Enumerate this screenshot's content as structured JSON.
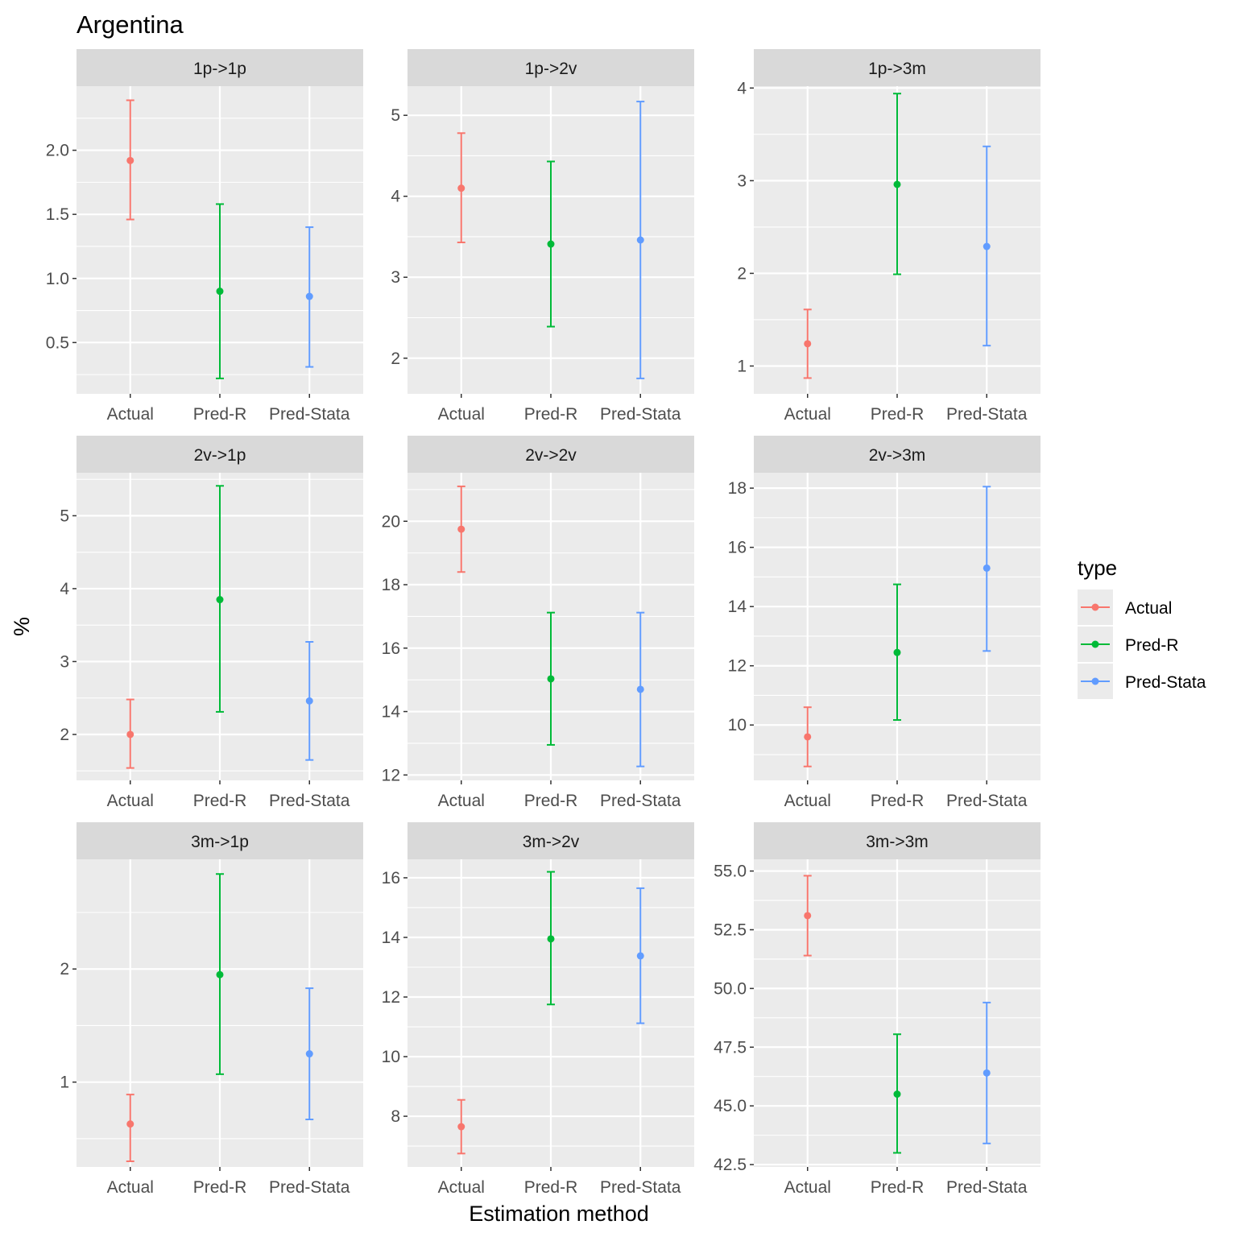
{
  "title": "Argentina",
  "xlabel": "Estimation method",
  "ylabel": "%",
  "legend": {
    "title": "type",
    "items": [
      "Actual",
      "Pred-R",
      "Pred-Stata"
    ],
    "placement": "right"
  },
  "colors": {
    "Actual": "#F8766D",
    "Pred-R": "#00BA38",
    "Pred-Stata": "#619CFF",
    "panel_bg": "#EBEBEB",
    "strip_bg": "#D9D9D9",
    "grid": "#FFFFFF"
  },
  "chart_data": [
    {
      "type": "errorbar",
      "panel": "1p->1p",
      "categories": [
        "Actual",
        "Pred-R",
        "Pred-Stata"
      ],
      "values": [
        1.92,
        0.9,
        0.86
      ],
      "lower": [
        1.46,
        0.22,
        0.31
      ],
      "upper": [
        2.39,
        1.58,
        1.4
      ],
      "ylim": [
        0.1,
        2.5
      ],
      "yticks": [
        0.5,
        1.0,
        1.5,
        2.0
      ],
      "ytick_labels": [
        "0.5",
        "1.0",
        "1.5",
        "2.0"
      ]
    },
    {
      "type": "errorbar",
      "panel": "1p->2v",
      "categories": [
        "Actual",
        "Pred-R",
        "Pred-Stata"
      ],
      "values": [
        4.1,
        3.41,
        3.46
      ],
      "lower": [
        3.43,
        2.39,
        1.75
      ],
      "upper": [
        4.78,
        4.43,
        5.17
      ],
      "ylim": [
        1.56,
        5.36
      ],
      "yticks": [
        2,
        3,
        4,
        5
      ],
      "ytick_labels": [
        "2",
        "3",
        "4",
        "5"
      ]
    },
    {
      "type": "errorbar",
      "panel": "1p->3m",
      "categories": [
        "Actual",
        "Pred-R",
        "Pred-Stata"
      ],
      "values": [
        1.24,
        2.96,
        2.29
      ],
      "lower": [
        0.87,
        1.99,
        1.22
      ],
      "upper": [
        1.61,
        3.94,
        3.37
      ],
      "ylim": [
        0.7,
        4.02
      ],
      "yticks": [
        1,
        2,
        3,
        4
      ],
      "ytick_labels": [
        "1",
        "2",
        "3",
        "4"
      ]
    },
    {
      "type": "errorbar",
      "panel": "2v->1p",
      "categories": [
        "Actual",
        "Pred-R",
        "Pred-Stata"
      ],
      "values": [
        2.0,
        3.85,
        2.46
      ],
      "lower": [
        1.54,
        2.31,
        1.65
      ],
      "upper": [
        2.48,
        5.41,
        3.27
      ],
      "ylim": [
        1.37,
        5.59
      ],
      "yticks": [
        2,
        3,
        4,
        5
      ],
      "ytick_labels": [
        "2",
        "3",
        "4",
        "5"
      ]
    },
    {
      "type": "errorbar",
      "panel": "2v->2v",
      "categories": [
        "Actual",
        "Pred-R",
        "Pred-Stata"
      ],
      "values": [
        19.75,
        15.03,
        14.7
      ],
      "lower": [
        18.4,
        12.95,
        12.27
      ],
      "upper": [
        21.1,
        17.12,
        17.12
      ],
      "ylim": [
        11.83,
        21.53
      ],
      "yticks": [
        12,
        14,
        16,
        18,
        20
      ],
      "ytick_labels": [
        "12",
        "14",
        "16",
        "18",
        "20"
      ]
    },
    {
      "type": "errorbar",
      "panel": "2v->3m",
      "categories": [
        "Actual",
        "Pred-R",
        "Pred-Stata"
      ],
      "values": [
        9.6,
        12.45,
        15.3
      ],
      "lower": [
        8.6,
        10.17,
        12.5
      ],
      "upper": [
        10.6,
        14.75,
        18.05
      ],
      "ylim": [
        8.13,
        18.52
      ],
      "yticks": [
        10,
        12,
        14,
        16,
        18
      ],
      "ytick_labels": [
        "10",
        "12",
        "14",
        "16",
        "18"
      ]
    },
    {
      "type": "errorbar",
      "panel": "3m->1p",
      "categories": [
        "Actual",
        "Pred-R",
        "Pred-Stata"
      ],
      "values": [
        0.63,
        1.95,
        1.25
      ],
      "lower": [
        0.3,
        1.07,
        0.67
      ],
      "upper": [
        0.89,
        2.84,
        1.83
      ],
      "ylim": [
        0.25,
        2.97
      ],
      "yticks": [
        1,
        2
      ],
      "ytick_labels": [
        "1",
        "2"
      ]
    },
    {
      "type": "errorbar",
      "panel": "3m->2v",
      "categories": [
        "Actual",
        "Pred-R",
        "Pred-Stata"
      ],
      "values": [
        7.65,
        13.95,
        13.38
      ],
      "lower": [
        6.75,
        11.75,
        11.12
      ],
      "upper": [
        8.55,
        16.2,
        15.65
      ],
      "ylim": [
        6.3,
        16.62
      ],
      "yticks": [
        8,
        10,
        12,
        14,
        16
      ],
      "ytick_labels": [
        "8",
        "10",
        "12",
        "14",
        "16"
      ]
    },
    {
      "type": "errorbar",
      "panel": "3m->3m",
      "categories": [
        "Actual",
        "Pred-R",
        "Pred-Stata"
      ],
      "values": [
        53.1,
        45.5,
        46.4
      ],
      "lower": [
        51.4,
        43.0,
        43.4
      ],
      "upper": [
        54.8,
        48.05,
        49.4
      ],
      "ylim": [
        42.4,
        55.5
      ],
      "yticks": [
        42.5,
        45.0,
        47.5,
        50.0,
        52.5,
        55.0
      ],
      "ytick_labels": [
        "42.5",
        "45.0",
        "47.5",
        "50.0",
        "52.5",
        "55.0"
      ]
    }
  ]
}
